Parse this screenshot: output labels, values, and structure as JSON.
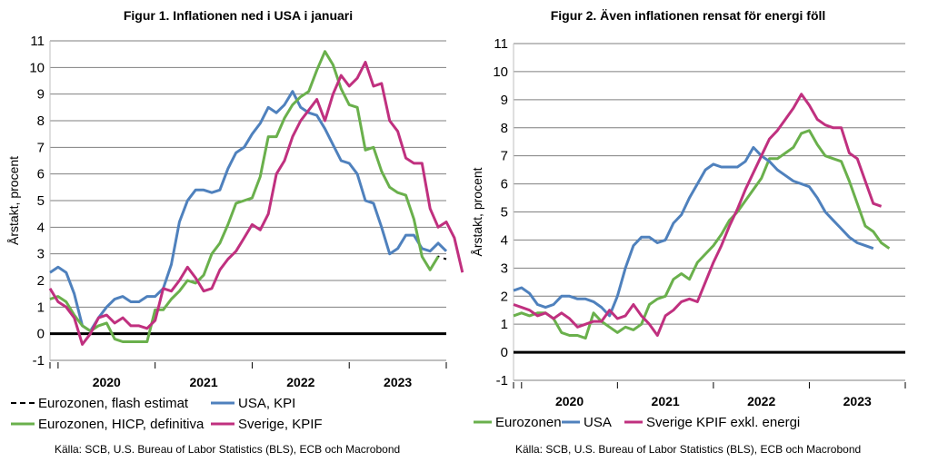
{
  "colors": {
    "green": "#6ab04c",
    "blue": "#4f81bd",
    "magenta": "#c0307f",
    "black": "#000000",
    "grid": "#7f7f7f"
  },
  "chart_data": [
    {
      "type": "line",
      "title": "Figur 1. Inflationen ned i USA i januari",
      "ylabel": "Årstakt, procent",
      "xlabel": "",
      "ylim": [
        -1,
        11
      ],
      "yticks": [
        "-1",
        "0",
        "1",
        "2",
        "3",
        "4",
        "5",
        "6",
        "7",
        "8",
        "9",
        "10",
        "11"
      ],
      "year_labels": [
        "2020",
        "2021",
        "2022",
        "2023"
      ],
      "grid": true,
      "legend_position": "bottom",
      "x_start": "2019-12",
      "x_end": "2024-01",
      "series": [
        {
          "name": "Eurozonen, flash estimat",
          "color": "#000000",
          "style": "dashed",
          "values": [
            1.3,
            1.4,
            1.2,
            0.7,
            0.3,
            0.1,
            0.3,
            0.4,
            -0.2,
            -0.3,
            -0.3,
            -0.3,
            -0.3,
            0.9,
            0.9,
            1.3,
            1.6,
            2.0,
            1.9,
            2.2,
            3.0,
            3.4,
            4.1,
            4.9,
            5.0,
            5.1,
            5.9,
            7.4,
            7.4,
            8.1,
            8.6,
            8.9,
            9.1,
            9.9,
            10.6,
            10.1,
            9.2,
            8.6,
            8.5,
            6.9,
            7.0,
            6.1,
            5.5,
            5.3,
            5.2,
            4.3,
            2.9,
            2.4,
            2.9,
            2.8
          ]
        },
        {
          "name": "USA, KPI",
          "color": "#4f81bd",
          "style": "solid",
          "values": [
            2.3,
            2.5,
            2.3,
            1.5,
            0.3,
            0.1,
            0.6,
            1.0,
            1.3,
            1.4,
            1.2,
            1.2,
            1.4,
            1.4,
            1.7,
            2.6,
            4.2,
            5.0,
            5.4,
            5.4,
            5.3,
            5.4,
            6.2,
            6.8,
            7.0,
            7.5,
            7.9,
            8.5,
            8.3,
            8.6,
            9.1,
            8.5,
            8.3,
            8.2,
            7.7,
            7.1,
            6.5,
            6.4,
            6.0,
            5.0,
            4.9,
            4.0,
            3.0,
            3.2,
            3.7,
            3.7,
            3.2,
            3.1,
            3.4,
            3.1
          ]
        },
        {
          "name": "Eurozonen, HICP, definitiva",
          "color": "#6ab04c",
          "style": "solid",
          "values": [
            1.3,
            1.4,
            1.2,
            0.7,
            0.3,
            0.1,
            0.3,
            0.4,
            -0.2,
            -0.3,
            -0.3,
            -0.3,
            -0.3,
            0.9,
            0.9,
            1.3,
            1.6,
            2.0,
            1.9,
            2.2,
            3.0,
            3.4,
            4.1,
            4.9,
            5.0,
            5.1,
            5.9,
            7.4,
            7.4,
            8.1,
            8.6,
            8.9,
            9.1,
            9.9,
            10.6,
            10.1,
            9.2,
            8.6,
            8.5,
            6.9,
            7.0,
            6.1,
            5.5,
            5.3,
            5.2,
            4.3,
            2.9,
            2.4,
            2.9
          ]
        },
        {
          "name": "Sverige, KPIF",
          "color": "#c0307f",
          "style": "solid",
          "values": [
            1.7,
            1.2,
            1.0,
            0.6,
            -0.4,
            0.0,
            0.6,
            0.7,
            0.4,
            0.6,
            0.3,
            0.3,
            0.2,
            0.5,
            1.7,
            1.6,
            2.0,
            2.5,
            2.1,
            1.6,
            1.7,
            2.4,
            2.8,
            3.1,
            3.6,
            4.1,
            3.9,
            4.5,
            6.0,
            6.5,
            7.4,
            8.0,
            8.4,
            8.8,
            8.0,
            9.0,
            9.7,
            9.3,
            9.6,
            10.2,
            9.3,
            9.4,
            8.0,
            7.6,
            6.6,
            6.4,
            6.4,
            4.7,
            4.0,
            4.2,
            3.6,
            2.3
          ]
        }
      ],
      "source": "Källa: SCB, U.S. Bureau of Labor Statistics (BLS), ECB och Macrobond"
    },
    {
      "type": "line",
      "title": "Figur 2. Även inflationen rensat för energi föll",
      "ylabel": "Årstakt, procent",
      "xlabel": "",
      "ylim": [
        -1,
        11
      ],
      "yticks": [
        "-1",
        "0",
        "1",
        "2",
        "3",
        "4",
        "5",
        "6",
        "7",
        "8",
        "9",
        "10",
        "11"
      ],
      "year_labels": [
        "2020",
        "2021",
        "2022",
        "2023"
      ],
      "grid": true,
      "legend_position": "bottom",
      "x_start": "2019-12",
      "x_end": "2024-01",
      "series": [
        {
          "name": "Eurozonen",
          "color": "#6ab04c",
          "style": "solid",
          "values": [
            1.3,
            1.4,
            1.3,
            1.4,
            1.4,
            1.2,
            0.7,
            0.6,
            0.6,
            0.5,
            1.4,
            1.1,
            0.9,
            0.7,
            0.9,
            0.8,
            1.0,
            1.7,
            1.9,
            2.0,
            2.6,
            2.8,
            2.6,
            3.2,
            3.5,
            3.8,
            4.2,
            4.7,
            5.0,
            5.4,
            5.8,
            6.2,
            6.9,
            6.9,
            7.1,
            7.3,
            7.8,
            7.9,
            7.4,
            7.0,
            6.9,
            6.8,
            6.1,
            5.3,
            4.5,
            4.3,
            3.9,
            3.7
          ]
        },
        {
          "name": "USA",
          "color": "#4f81bd",
          "style": "solid",
          "values": [
            2.2,
            2.3,
            2.1,
            1.7,
            1.6,
            1.7,
            2.0,
            2.0,
            1.9,
            1.9,
            1.8,
            1.6,
            1.3,
            2.0,
            3.0,
            3.8,
            4.1,
            4.1,
            3.9,
            4.0,
            4.6,
            4.9,
            5.5,
            6.0,
            6.5,
            6.7,
            6.6,
            6.6,
            6.6,
            6.8,
            7.3,
            7.0,
            6.8,
            6.5,
            6.3,
            6.1,
            6.0,
            5.9,
            5.5,
            5.0,
            4.7,
            4.4,
            4.1,
            3.9,
            3.8,
            3.7
          ]
        },
        {
          "name": "Sverige KPIF exkl. energi",
          "color": "#c0307f",
          "style": "solid",
          "values": [
            1.7,
            1.6,
            1.5,
            1.3,
            1.4,
            1.2,
            1.4,
            1.2,
            0.9,
            1.0,
            1.1,
            1.1,
            1.5,
            1.2,
            1.3,
            1.7,
            1.3,
            1.0,
            0.6,
            1.3,
            1.5,
            1.8,
            1.9,
            1.8,
            2.5,
            3.2,
            3.8,
            4.5,
            5.1,
            5.8,
            6.4,
            7.0,
            7.6,
            7.9,
            8.3,
            8.7,
            9.2,
            8.8,
            8.3,
            8.1,
            8.0,
            8.0,
            7.1,
            6.9,
            6.1,
            5.3,
            5.2
          ]
        }
      ],
      "source": "Källa: SCB, U.S. Bureau of Labor Statistics (BLS), ECB och Macrobond"
    }
  ]
}
